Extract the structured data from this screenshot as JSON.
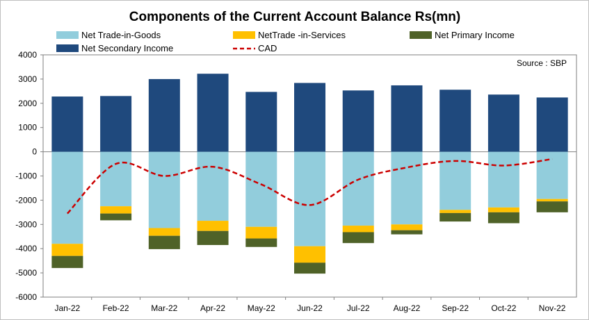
{
  "chart_data": {
    "type": "bar",
    "stacked": true,
    "title": "Components of the Current Account Balance Rs(mn)",
    "source_note": "Source : SBP",
    "categories": [
      "Jan-22",
      "Feb-22",
      "Mar-22",
      "Apr-22",
      "May-22",
      "Jun-22",
      "Jul-22",
      "Aug-22",
      "Sep-22",
      "Oct-22",
      "Nov-22"
    ],
    "ylim": [
      -6000,
      4000
    ],
    "yticks": [
      "4000",
      "3000",
      "2000",
      "1000",
      "0",
      "-1000",
      "-2000",
      "-3000",
      "-4000",
      "-5000",
      "-6000"
    ],
    "grid": false,
    "legend_position": "top",
    "series": [
      {
        "name": "Net Trade-in-Goods",
        "color": "#92cddc",
        "kind": "bar",
        "values": [
          -3800,
          -2250,
          -3150,
          -2850,
          -3100,
          -3900,
          -3050,
          -3000,
          -2400,
          -2300,
          -1950
        ]
      },
      {
        "name": "NetTrade -in-Services",
        "color": "#ffc000",
        "kind": "bar",
        "values": [
          -500,
          -300,
          -320,
          -420,
          -480,
          -680,
          -270,
          -240,
          -130,
          -200,
          -100
        ]
      },
      {
        "name": "Net  Primary Income",
        "color": "#4f6228",
        "kind": "bar",
        "values": [
          -500,
          -280,
          -550,
          -580,
          -350,
          -450,
          -450,
          -170,
          -350,
          -450,
          -450
        ]
      },
      {
        "name": "Net  Secondary Income",
        "color": "#1f497d",
        "kind": "bar",
        "values": [
          2280,
          2300,
          3000,
          3220,
          2470,
          2840,
          2530,
          2740,
          2560,
          2360,
          2240
        ]
      },
      {
        "name": "CAD",
        "color": "#cc0000",
        "kind": "line",
        "values": [
          -2550,
          -500,
          -1000,
          -620,
          -1350,
          -2200,
          -1150,
          -650,
          -380,
          -570,
          -300
        ]
      }
    ]
  }
}
